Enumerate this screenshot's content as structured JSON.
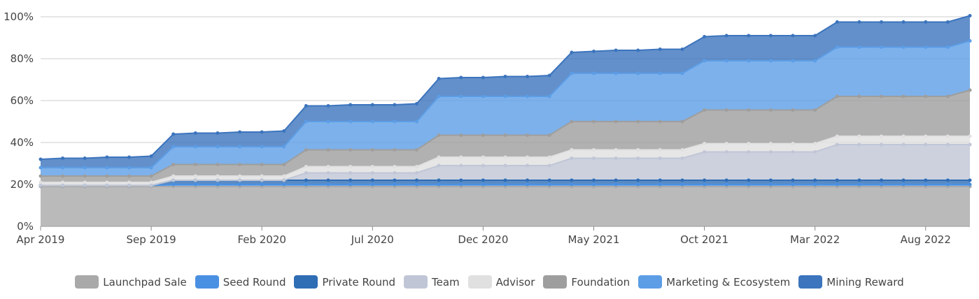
{
  "chart_data": {
    "type": "area",
    "stacked": true,
    "title": "",
    "xlabel": "",
    "ylabel": "",
    "ylim": [
      0,
      100
    ],
    "yticks": [
      "0%",
      "20%",
      "40%",
      "60%",
      "80%",
      "100%"
    ],
    "xtick_labels": [
      "Apr 2019",
      "Sep 2019",
      "Feb 2020",
      "Jul 2020",
      "Dec 2020",
      "May 2021",
      "Oct 2021",
      "Mar 2022",
      "Aug 2022"
    ],
    "x": [
      "Apr 2019",
      "May 2019",
      "Jun 2019",
      "Jul 2019",
      "Aug 2019",
      "Sep 2019",
      "Oct 2019",
      "Nov 2019",
      "Dec 2019",
      "Jan 2020",
      "Feb 2020",
      "Mar 2020",
      "Apr 2020",
      "May 2020",
      "Jun 2020",
      "Jul 2020",
      "Aug 2020",
      "Sep 2020",
      "Oct 2020",
      "Nov 2020",
      "Dec 2020",
      "Jan 2021",
      "Feb 2021",
      "Mar 2021",
      "Apr 2021",
      "May 2021",
      "Jun 2021",
      "Jul 2021",
      "Aug 2021",
      "Sep 2021",
      "Oct 2021",
      "Nov 2021",
      "Dec 2021",
      "Jan 2022",
      "Feb 2022",
      "Mar 2022",
      "Apr 2022",
      "May 2022",
      "Jun 2022",
      "Jul 2022",
      "Aug 2022",
      "Sep 2022",
      "Oct 2022"
    ],
    "grid": true,
    "legend_position": "bottom",
    "series": [
      {
        "name": "Launchpad Sale",
        "color": "#a9a9a9",
        "values": [
          19.0,
          19.0,
          19.0,
          19.0,
          19.0,
          19.0,
          19.0,
          19.0,
          19.0,
          19.0,
          19.0,
          19.0,
          19.0,
          19.0,
          19.0,
          19.0,
          19.0,
          19.0,
          19.0,
          19.0,
          19.0,
          19.0,
          19.0,
          19.0,
          19.0,
          19.0,
          19.0,
          19.0,
          19.0,
          19.0,
          19.0,
          19.0,
          19.0,
          19.0,
          19.0,
          19.0,
          19.0,
          19.0,
          19.0,
          19.0,
          19.0,
          19.0,
          19.0
        ]
      },
      {
        "name": "Seed Round",
        "color": "#4a90e2",
        "values": [
          0.5,
          0.5,
          0.5,
          0.5,
          0.5,
          0.5,
          1.0,
          1.0,
          1.0,
          1.0,
          1.0,
          1.0,
          1.0,
          1.0,
          1.0,
          1.0,
          1.0,
          1.0,
          1.0,
          1.0,
          1.0,
          1.0,
          1.0,
          1.0,
          1.0,
          1.0,
          1.0,
          1.0,
          1.0,
          1.0,
          1.0,
          1.0,
          1.0,
          1.0,
          1.0,
          1.0,
          1.0,
          1.0,
          1.0,
          1.0,
          1.0,
          1.0,
          1.0
        ]
      },
      {
        "name": "Private Round",
        "color": "#2f6db5",
        "values": [
          0.0,
          0.0,
          0.0,
          0.0,
          0.0,
          0.0,
          2.0,
          2.0,
          2.0,
          2.0,
          2.0,
          2.0,
          2.0,
          2.0,
          2.0,
          2.0,
          2.0,
          2.0,
          2.0,
          2.0,
          2.0,
          2.0,
          2.0,
          2.0,
          2.0,
          2.0,
          2.0,
          2.0,
          2.0,
          2.0,
          2.0,
          2.0,
          2.0,
          2.0,
          2.0,
          2.0,
          2.0,
          2.0,
          2.0,
          2.0,
          2.0,
          2.0,
          2.0
        ]
      },
      {
        "name": "Team",
        "color": "#c0c6d6",
        "values": [
          0.0,
          0.0,
          0.0,
          0.0,
          0.0,
          0.0,
          0.0,
          0.0,
          0.0,
          0.0,
          0.0,
          0.0,
          3.5,
          3.5,
          3.5,
          3.5,
          3.5,
          3.5,
          7.0,
          7.0,
          7.0,
          7.0,
          7.0,
          7.0,
          10.5,
          10.5,
          10.5,
          10.5,
          10.5,
          10.5,
          13.5,
          13.5,
          13.5,
          13.5,
          13.5,
          13.5,
          17.0,
          17.0,
          17.0,
          17.0,
          17.0,
          17.0,
          17.0
        ]
      },
      {
        "name": "Advisor",
        "color": "#e0e0e0",
        "values": [
          1.5,
          1.5,
          1.5,
          1.5,
          1.5,
          1.5,
          2.0,
          2.0,
          2.0,
          2.0,
          2.0,
          2.0,
          3.0,
          3.0,
          3.0,
          3.0,
          3.0,
          3.0,
          4.0,
          4.0,
          4.0,
          4.0,
          4.0,
          4.0,
          4.0,
          4.0,
          4.0,
          4.0,
          4.0,
          4.0,
          4.0,
          4.0,
          4.0,
          4.0,
          4.0,
          4.0,
          4.0,
          4.0,
          4.0,
          4.0,
          4.0,
          4.0,
          4.0
        ]
      },
      {
        "name": "Foundation",
        "color": "#9e9e9e",
        "values": [
          3.0,
          3.0,
          3.0,
          3.0,
          3.0,
          3.0,
          5.5,
          5.5,
          5.5,
          5.5,
          5.5,
          5.5,
          8.0,
          8.0,
          8.0,
          8.0,
          8.0,
          8.0,
          10.5,
          10.5,
          10.5,
          10.5,
          10.5,
          10.5,
          13.5,
          13.5,
          13.5,
          13.5,
          13.5,
          13.5,
          16.0,
          16.0,
          16.0,
          16.0,
          16.0,
          16.0,
          19.0,
          19.0,
          19.0,
          19.0,
          19.0,
          19.0,
          22.0
        ]
      },
      {
        "name": "Marketing & Ecosystem",
        "color": "#5c9de6",
        "values": [
          4.0,
          4.0,
          4.0,
          4.0,
          4.0,
          4.0,
          8.5,
          8.5,
          8.5,
          8.5,
          8.5,
          8.5,
          13.5,
          13.5,
          13.5,
          13.5,
          13.5,
          13.5,
          18.5,
          18.5,
          18.5,
          18.5,
          18.5,
          18.5,
          23.0,
          23.0,
          23.0,
          23.0,
          23.0,
          23.0,
          23.5,
          23.5,
          23.5,
          23.5,
          23.5,
          23.5,
          23.5,
          23.5,
          23.5,
          23.5,
          23.5,
          23.5,
          23.5
        ]
      },
      {
        "name": "Mining Reward",
        "color": "#3c74bd",
        "values": [
          4.0,
          4.5,
          4.5,
          5.0,
          5.0,
          5.5,
          6.0,
          6.5,
          6.5,
          7.0,
          7.0,
          7.5,
          7.5,
          7.5,
          8.0,
          8.0,
          8.0,
          8.5,
          8.5,
          9.0,
          9.0,
          9.5,
          9.5,
          10.0,
          10.0,
          10.5,
          11.0,
          11.0,
          11.5,
          11.5,
          11.5,
          12.0,
          12.0,
          12.0,
          12.0,
          12.0,
          12.0,
          12.0,
          12.0,
          12.0,
          12.0,
          12.0,
          12.0
        ]
      }
    ]
  }
}
